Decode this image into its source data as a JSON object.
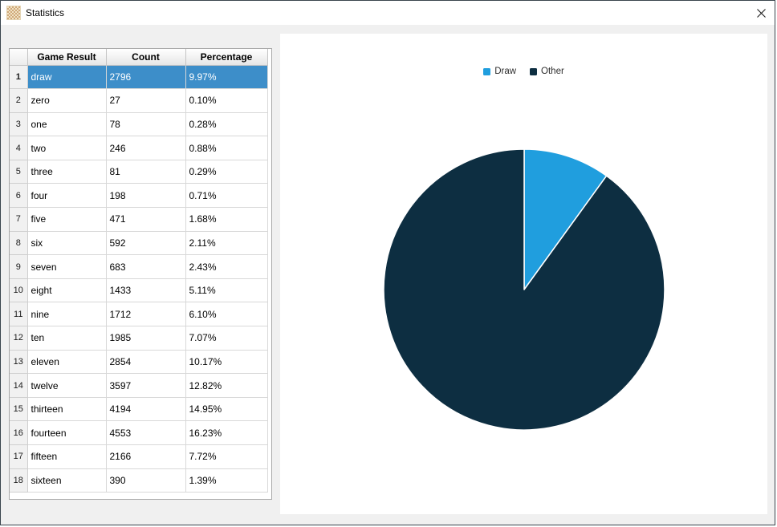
{
  "window": {
    "title": "Statistics"
  },
  "icons": {
    "app": "checkerboard-icon",
    "close": "close-x-icon"
  },
  "colors": {
    "draw_slice": "#209ede",
    "other_slice": "#0d2e41",
    "row_selection": "#3d8ec9",
    "panel_background": "#ffffff",
    "window_background": "#f0f0f0"
  },
  "table": {
    "columns": [
      "Game Result",
      "Count",
      "Percentage"
    ],
    "selected_row_index": 0,
    "rows": [
      {
        "num": "1",
        "result": "draw",
        "count": "2796",
        "percentage": "9.97%"
      },
      {
        "num": "2",
        "result": "zero",
        "count": "27",
        "percentage": "0.10%"
      },
      {
        "num": "3",
        "result": "one",
        "count": "78",
        "percentage": "0.28%"
      },
      {
        "num": "4",
        "result": "two",
        "count": "246",
        "percentage": "0.88%"
      },
      {
        "num": "5",
        "result": "three",
        "count": "81",
        "percentage": "0.29%"
      },
      {
        "num": "6",
        "result": "four",
        "count": "198",
        "percentage": "0.71%"
      },
      {
        "num": "7",
        "result": "five",
        "count": "471",
        "percentage": "1.68%"
      },
      {
        "num": "8",
        "result": "six",
        "count": "592",
        "percentage": "2.11%"
      },
      {
        "num": "9",
        "result": "seven",
        "count": "683",
        "percentage": "2.43%"
      },
      {
        "num": "10",
        "result": "eight",
        "count": "1433",
        "percentage": "5.11%"
      },
      {
        "num": "11",
        "result": "nine",
        "count": "1712",
        "percentage": "6.10%"
      },
      {
        "num": "12",
        "result": "ten",
        "count": "1985",
        "percentage": "7.07%"
      },
      {
        "num": "13",
        "result": "eleven",
        "count": "2854",
        "percentage": "10.17%"
      },
      {
        "num": "14",
        "result": "twelve",
        "count": "3597",
        "percentage": "12.82%"
      },
      {
        "num": "15",
        "result": "thirteen",
        "count": "4194",
        "percentage": "14.95%"
      },
      {
        "num": "16",
        "result": "fourteen",
        "count": "4553",
        "percentage": "16.23%"
      },
      {
        "num": "17",
        "result": "fifteen",
        "count": "2166",
        "percentage": "7.72%"
      },
      {
        "num": "18",
        "result": "sixteen",
        "count": "390",
        "percentage": "1.39%"
      }
    ]
  },
  "chart_data": {
    "type": "pie",
    "title": "",
    "legend_position": "top",
    "start_angle_deg": -90,
    "direction": "clockwise",
    "slices": [
      {
        "label": "Draw",
        "count": 2796,
        "percent": 9.97,
        "color": "#209ede"
      },
      {
        "label": "Other",
        "count": 25260,
        "percent": 90.03,
        "color": "#0d2e41"
      }
    ]
  }
}
